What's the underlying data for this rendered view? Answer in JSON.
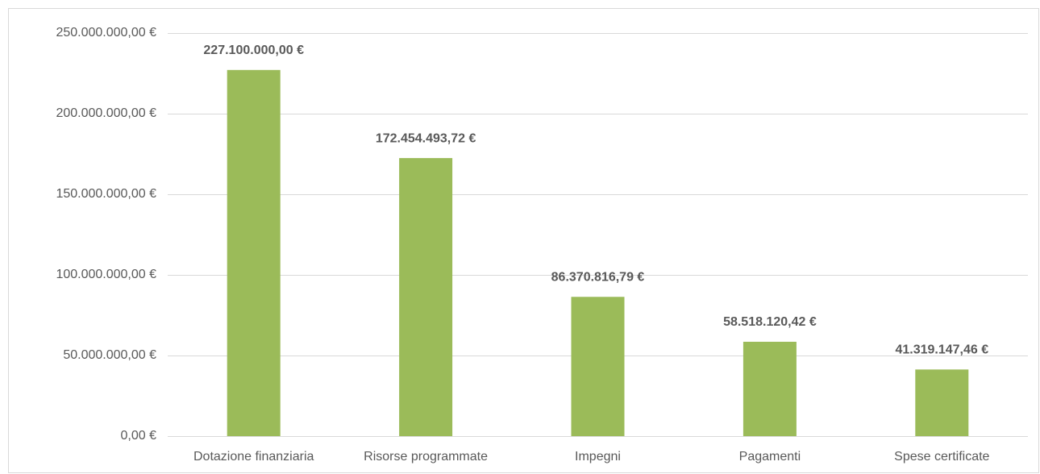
{
  "chart_data": {
    "type": "bar",
    "categories": [
      "Dotazione finanziaria",
      "Risorse programmate",
      "Impegni",
      "Pagamenti",
      "Spese certificate"
    ],
    "values": [
      227100000,
      172454493.72,
      86370816.79,
      58518120.42,
      41319147.46
    ],
    "value_labels": [
      "227.100.000,00 €",
      "172.454.493,72 €",
      "86.370.816,79 €",
      "58.518.120,42 €",
      "41.319.147,46 €"
    ],
    "color": "#9bbb59",
    "ylim": [
      0,
      250000000
    ],
    "yticks": [
      {
        "value": 0,
        "label": "0,00 €"
      },
      {
        "value": 50000000,
        "label": "50.000.000,00 €"
      },
      {
        "value": 100000000,
        "label": "100.000.000,00 €"
      },
      {
        "value": 150000000,
        "label": "150.000.000,00 €"
      },
      {
        "value": 200000000,
        "label": "200.000.000,00 €"
      },
      {
        "value": 250000000,
        "label": "250.000.000,00 €"
      }
    ],
    "grid": true
  }
}
